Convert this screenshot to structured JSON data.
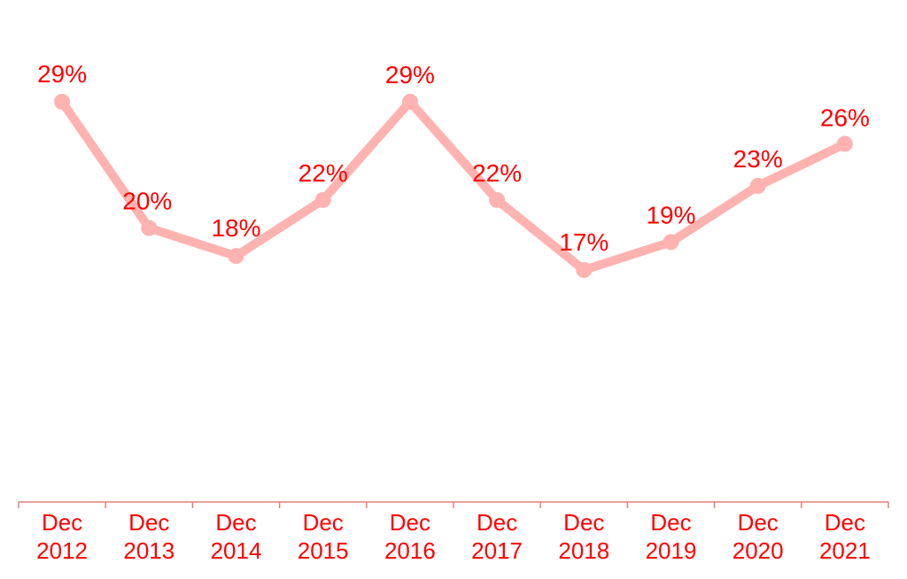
{
  "colors": {
    "line": "#ffb3b0",
    "text": "#ff0000",
    "axis": "#e08080"
  },
  "chart_data": {
    "type": "line",
    "categories": [
      [
        "Dec",
        "2012"
      ],
      [
        "Dec",
        "2013"
      ],
      [
        "Dec",
        "2014"
      ],
      [
        "Dec",
        "2015"
      ],
      [
        "Dec",
        "2016"
      ],
      [
        "Dec",
        "2017"
      ],
      [
        "Dec",
        "2018"
      ],
      [
        "Dec",
        "2019"
      ],
      [
        "Dec",
        "2020"
      ],
      [
        "Dec",
        "2021"
      ]
    ],
    "values": [
      29,
      20,
      18,
      22,
      29,
      22,
      17,
      19,
      23,
      26
    ],
    "data_labels": [
      "29%",
      "20%",
      "18%",
      "22%",
      "29%",
      "22%",
      "17%",
      "19%",
      "23%",
      "26%"
    ],
    "unit": "%",
    "title": "",
    "xlabel": "",
    "ylabel": "",
    "ylim": [
      0,
      35
    ],
    "grid": false,
    "legend": "none",
    "markers": true
  }
}
